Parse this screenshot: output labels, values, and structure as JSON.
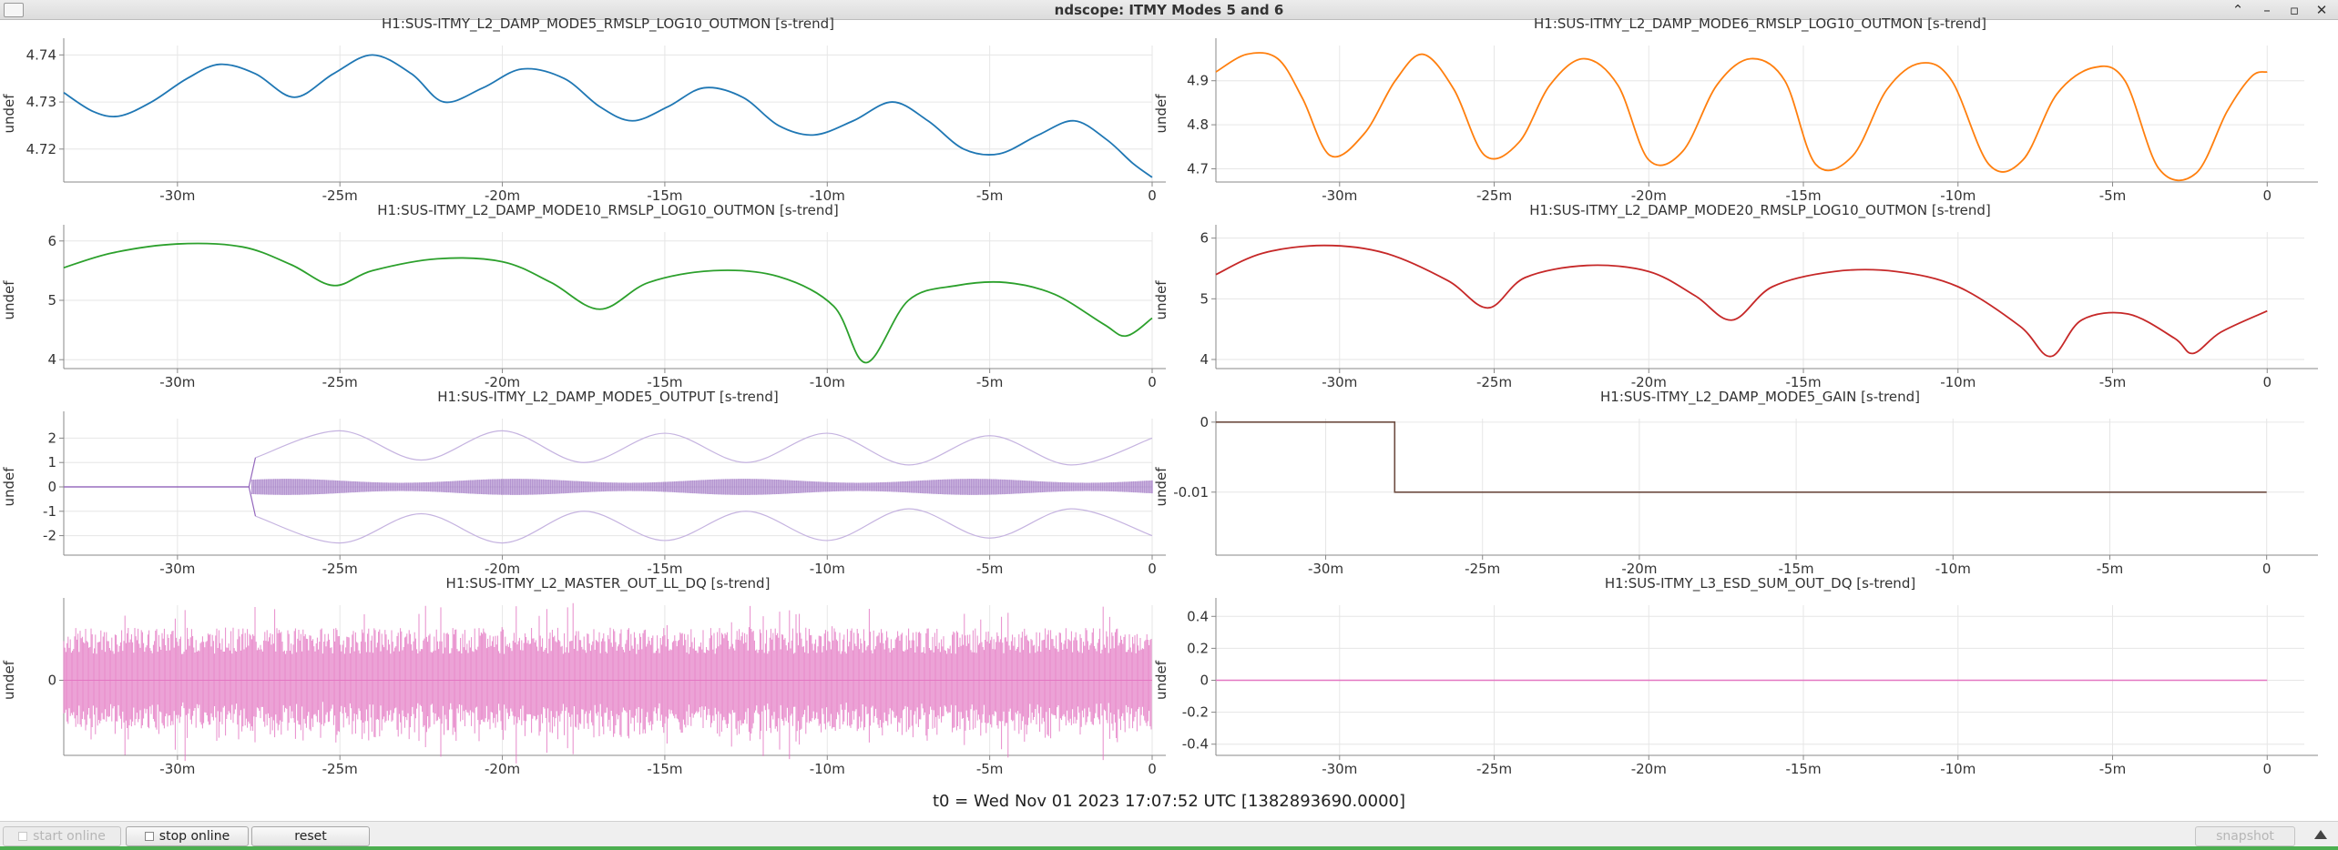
{
  "window": {
    "title": "ndscope: ITMY Modes 5 and 6",
    "menu_icon": "window-menu-icon",
    "controls": [
      "⌃",
      "–",
      "▫",
      "✕"
    ]
  },
  "t0_label": "t0 = Wed Nov 01 2023 17:07:52 UTC [1382893690.0000]",
  "buttons": {
    "start_online": "start online",
    "stop_online": "stop online",
    "reset": "reset",
    "snapshot": "snapshot"
  },
  "chart_data": [
    {
      "type": "line",
      "title": "H1:SUS-ITMY_L2_DAMP_MODE5_RMSLP_LOG10_OUTMON [s-trend]",
      "ylabel": "undef",
      "xlabel": "",
      "xlim": [
        -33.5,
        0
      ],
      "ylim": [
        4.713,
        4.742
      ],
      "x_ticks": [
        -30,
        -25,
        -20,
        -15,
        -10,
        -5,
        0
      ],
      "x_tick_labels": [
        "-30m",
        "-25m",
        "-20m",
        "-15m",
        "-10m",
        "-5m",
        "0"
      ],
      "y_ticks": [
        4.72,
        4.73,
        4.74
      ],
      "y_tick_labels": [
        "4.72",
        "4.73",
        "4.74"
      ],
      "grid": true,
      "color": "#1f77b4",
      "series": [
        {
          "x": [
            -33.5,
            -32.6,
            -31.8,
            -30.8,
            -29.7,
            -28.7,
            -27.6,
            -26.4,
            -25.2,
            -24.0,
            -22.8,
            -21.8,
            -20.6,
            -19.4,
            -18.1,
            -17.0,
            -16.0,
            -14.9,
            -13.8,
            -12.6,
            -11.5,
            -10.4,
            -9.2,
            -8.0,
            -6.9,
            -5.8,
            -4.7,
            -3.5,
            -2.4,
            -1.4,
            -0.6,
            0
          ],
          "y": [
            4.732,
            4.728,
            4.727,
            4.73,
            4.735,
            4.738,
            4.736,
            4.731,
            4.736,
            4.74,
            4.736,
            4.73,
            4.733,
            4.737,
            4.735,
            4.729,
            4.726,
            4.729,
            4.733,
            4.731,
            4.725,
            4.723,
            4.726,
            4.73,
            4.726,
            4.72,
            4.719,
            4.723,
            4.726,
            4.722,
            4.717,
            4.714
          ]
        }
      ]
    },
    {
      "type": "line",
      "title": "H1:SUS-ITMY_L2_DAMP_MODE6_RMSLP_LOG10_OUTMON [s-trend]",
      "ylabel": "undef",
      "xlabel": "",
      "xlim": [
        -34,
        1.2
      ],
      "ylim": [
        4.67,
        4.98
      ],
      "x_ticks": [
        -30,
        -25,
        -20,
        -15,
        -10,
        -5,
        0
      ],
      "x_tick_labels": [
        "-30m",
        "-25m",
        "-20m",
        "-15m",
        "-10m",
        "-5m",
        "0"
      ],
      "y_ticks": [
        4.7,
        4.8,
        4.9
      ],
      "y_tick_labels": [
        "4.7",
        "4.8",
        "4.9"
      ],
      "grid": true,
      "color": "#ff7f0e",
      "series": [
        {
          "x": [
            -34,
            -33,
            -32,
            -31.2,
            -30.3,
            -29.2,
            -28.2,
            -27.3,
            -26.3,
            -25.3,
            -24.2,
            -23.2,
            -22.1,
            -21.0,
            -20.0,
            -18.9,
            -17.8,
            -16.7,
            -15.6,
            -14.6,
            -13.4,
            -12.3,
            -11.2,
            -10.2,
            -9.0,
            -7.9,
            -6.8,
            -5.6,
            -4.6,
            -3.5,
            -2.3,
            -1.3,
            -0.5,
            0
          ],
          "y": [
            4.92,
            4.96,
            4.95,
            4.86,
            4.73,
            4.78,
            4.9,
            4.96,
            4.88,
            4.73,
            4.76,
            4.89,
            4.95,
            4.89,
            4.72,
            4.74,
            4.89,
            4.95,
            4.9,
            4.71,
            4.73,
            4.88,
            4.94,
            4.9,
            4.71,
            4.72,
            4.87,
            4.93,
            4.9,
            4.7,
            4.69,
            4.83,
            4.91,
            4.92
          ]
        }
      ]
    },
    {
      "type": "line",
      "title": "H1:SUS-ITMY_L2_DAMP_MODE10_RMSLP_LOG10_OUTMON [s-trend]",
      "ylabel": "undef",
      "xlabel": "",
      "xlim": [
        -33.5,
        0
      ],
      "ylim": [
        3.85,
        6.15
      ],
      "x_ticks": [
        -30,
        -25,
        -20,
        -15,
        -10,
        -5,
        0
      ],
      "x_tick_labels": [
        "-30m",
        "-25m",
        "-20m",
        "-15m",
        "-10m",
        "-5m",
        "0"
      ],
      "y_ticks": [
        4,
        5,
        6
      ],
      "y_tick_labels": [
        "4",
        "5",
        "6"
      ],
      "grid": true,
      "color": "#2ca02c",
      "series": [
        {
          "x": [
            -33.5,
            -32,
            -30,
            -28,
            -26.5,
            -25.2,
            -24,
            -22,
            -20,
            -18.5,
            -17,
            -15.5,
            -13.5,
            -11.5,
            -9.8,
            -8.8,
            -7.5,
            -6,
            -4.5,
            -3,
            -1.5,
            -0.8,
            0
          ],
          "y": [
            5.55,
            5.8,
            5.95,
            5.9,
            5.6,
            5.25,
            5.5,
            5.7,
            5.65,
            5.3,
            4.85,
            5.3,
            5.5,
            5.4,
            4.9,
            3.95,
            5.0,
            5.25,
            5.3,
            5.1,
            4.6,
            4.4,
            4.7
          ]
        }
      ]
    },
    {
      "type": "line",
      "title": "H1:SUS-ITMY_L2_DAMP_MODE20_RMSLP_LOG10_OUTMON [s-trend]",
      "ylabel": "undef",
      "xlabel": "",
      "xlim": [
        -34,
        1.2
      ],
      "ylim": [
        3.85,
        6.1
      ],
      "x_ticks": [
        -30,
        -25,
        -20,
        -15,
        -10,
        -5,
        0
      ],
      "x_tick_labels": [
        "-30m",
        "-25m",
        "-20m",
        "-15m",
        "-10m",
        "-5m",
        "0"
      ],
      "y_ticks": [
        4,
        5,
        6
      ],
      "y_tick_labels": [
        "4",
        "5",
        "6"
      ],
      "grid": true,
      "color": "#c62828",
      "series": [
        {
          "x": [
            -34,
            -32.5,
            -30.5,
            -28.5,
            -26.5,
            -25.2,
            -24,
            -22,
            -20,
            -18.5,
            -17.3,
            -16,
            -14,
            -12,
            -10,
            -8,
            -7,
            -6,
            -4.5,
            -3,
            -2.4,
            -1.5,
            0
          ],
          "y": [
            5.4,
            5.75,
            5.88,
            5.75,
            5.3,
            4.85,
            5.35,
            5.55,
            5.45,
            5.05,
            4.65,
            5.2,
            5.45,
            5.45,
            5.2,
            4.55,
            4.05,
            4.65,
            4.75,
            4.35,
            4.1,
            4.45,
            4.8
          ]
        }
      ]
    },
    {
      "type": "line",
      "title": "H1:SUS-ITMY_L2_DAMP_MODE5_OUTPUT [s-trend]",
      "ylabel": "undef",
      "xlabel": "",
      "xlim": [
        -33.5,
        0
      ],
      "ylim": [
        -2.8,
        2.8
      ],
      "x_ticks": [
        -30,
        -25,
        -20,
        -15,
        -10,
        -5,
        0
      ],
      "x_tick_labels": [
        "-30m",
        "-25m",
        "-20m",
        "-15m",
        "-10m",
        "-5m",
        "0"
      ],
      "y_ticks": [
        -2,
        -1,
        0,
        1,
        2
      ],
      "y_tick_labels": [
        "-2",
        "-1",
        "0",
        "1",
        "2"
      ],
      "grid": true,
      "color": "#9467bd",
      "series": [
        {
          "x": [
            -33.5,
            -27.8,
            -27.6,
            -25,
            -22.5,
            -20,
            -17.5,
            -15,
            -12.5,
            -10,
            -7.5,
            -5,
            -2.5,
            0
          ],
          "y": [
            0,
            0,
            1.2,
            2.3,
            1.1,
            2.3,
            1.0,
            2.2,
            1.0,
            2.2,
            0.9,
            2.1,
            0.9,
            2.0
          ]
        },
        {
          "x": [
            -33.5,
            -27.8,
            -27.6,
            -25,
            -22.5,
            -20,
            -17.5,
            -15,
            -12.5,
            -10,
            -7.5,
            -5,
            -2.5,
            0
          ],
          "y": [
            0,
            0,
            -1.2,
            -2.3,
            -1.1,
            -2.3,
            -1.0,
            -2.2,
            -1.0,
            -2.2,
            -0.9,
            -2.1,
            -0.9,
            -2.0
          ]
        }
      ]
    },
    {
      "type": "line",
      "title": "H1:SUS-ITMY_L2_DAMP_MODE5_GAIN [s-trend]",
      "ylabel": "undef",
      "xlabel": "",
      "xlim": [
        -33.5,
        1.2
      ],
      "ylim": [
        -0.019,
        0.0005
      ],
      "x_ticks": [
        -30,
        -25,
        -20,
        -15,
        -10,
        -5,
        0
      ],
      "x_tick_labels": [
        "-30m",
        "-25m",
        "-20m",
        "-15m",
        "-10m",
        "-5m",
        "0"
      ],
      "y_ticks": [
        0,
        -0.01
      ],
      "y_tick_labels": [
        "0",
        "-0.01"
      ],
      "grid": true,
      "color": "#6d4c41",
      "series": [
        {
          "x": [
            -33.5,
            -27.8,
            -27.8,
            0
          ],
          "y": [
            0,
            0,
            -0.01,
            -0.01
          ]
        }
      ]
    },
    {
      "type": "line",
      "title": "H1:SUS-ITMY_L2_MASTER_OUT_LL_DQ [s-trend]",
      "ylabel": "undef",
      "xlabel": "",
      "xlim": [
        -33.5,
        0
      ],
      "ylim": [
        -1,
        1
      ],
      "x_ticks": [
        -30,
        -25,
        -20,
        -15,
        -10,
        -5,
        0
      ],
      "x_tick_labels": [
        "-30m",
        "-25m",
        "-20m",
        "-15m",
        "-10m",
        "-5m",
        "0"
      ],
      "y_ticks": [
        0
      ],
      "y_tick_labels": [
        "0"
      ],
      "grid": true,
      "color": "#e377c2",
      "series": [
        {
          "x": [
            -33.5,
            0
          ],
          "y": [
            0,
            0
          ]
        }
      ]
    },
    {
      "type": "line",
      "title": "H1:SUS-ITMY_L3_ESD_SUM_OUT_DQ [s-trend]",
      "ylabel": "undef",
      "xlabel": "",
      "xlim": [
        -34,
        1.2
      ],
      "ylim": [
        -0.47,
        0.47
      ],
      "x_ticks": [
        -30,
        -25,
        -20,
        -15,
        -10,
        -5,
        0
      ],
      "x_tick_labels": [
        "-30m",
        "-25m",
        "-20m",
        "-15m",
        "-10m",
        "-5m",
        "0"
      ],
      "y_ticks": [
        -0.4,
        -0.2,
        0,
        0.2,
        0.4
      ],
      "y_tick_labels": [
        "-0.4",
        "-0.2",
        "0",
        "0.2",
        "0.4"
      ],
      "grid": true,
      "color": "#e377c2",
      "series": [
        {
          "x": [
            -34,
            0
          ],
          "y": [
            0,
            0
          ]
        }
      ]
    }
  ]
}
